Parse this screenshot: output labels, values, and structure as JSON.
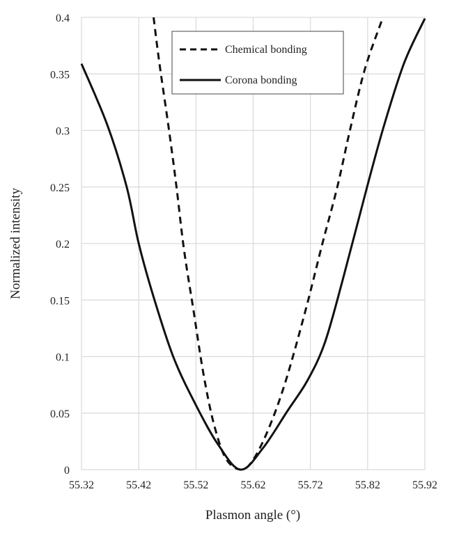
{
  "chart_data": {
    "type": "line",
    "title": "",
    "xlabel": "Plasmon angle (°)",
    "ylabel": "Normalized intensity",
    "xlim": [
      55.32,
      55.92
    ],
    "ylim": [
      0,
      0.4
    ],
    "x_ticks": [
      "55.32",
      "55.42",
      "55.52",
      "55.62",
      "55.72",
      "55.82",
      "55.92"
    ],
    "y_ticks": [
      "0",
      "0.05",
      "0.1",
      "0.15",
      "0.2",
      "0.25",
      "0.3",
      "0.35",
      "0.4"
    ],
    "grid": true,
    "legend_position": "top-center",
    "series": [
      {
        "name": "Chemical bonding",
        "style": "dashed",
        "color": "#111111",
        "x": [
          55.446,
          55.456,
          55.473,
          55.486,
          55.499,
          55.516,
          55.533,
          55.551,
          55.572,
          55.598,
          55.619,
          55.646,
          55.676,
          55.711,
          55.741,
          55.767,
          55.789,
          55.815,
          55.846
        ],
        "y": [
          0.4,
          0.36,
          0.3,
          0.25,
          0.195,
          0.14,
          0.085,
          0.041,
          0.01,
          0,
          0.008,
          0.035,
          0.077,
          0.14,
          0.2,
          0.25,
          0.3,
          0.354,
          0.399
        ]
      },
      {
        "name": "Corona bonding",
        "style": "solid",
        "color": "#111111",
        "x": [
          55.32,
          55.365,
          55.399,
          55.42,
          55.447,
          55.481,
          55.52,
          55.559,
          55.598,
          55.637,
          55.68,
          55.715,
          55.745,
          55.776,
          55.819,
          55.849,
          55.884,
          55.92
        ],
        "y": [
          0.359,
          0.305,
          0.25,
          0.2,
          0.151,
          0.099,
          0.057,
          0.022,
          0,
          0.019,
          0.052,
          0.079,
          0.112,
          0.167,
          0.25,
          0.305,
          0.36,
          0.399
        ]
      }
    ]
  }
}
